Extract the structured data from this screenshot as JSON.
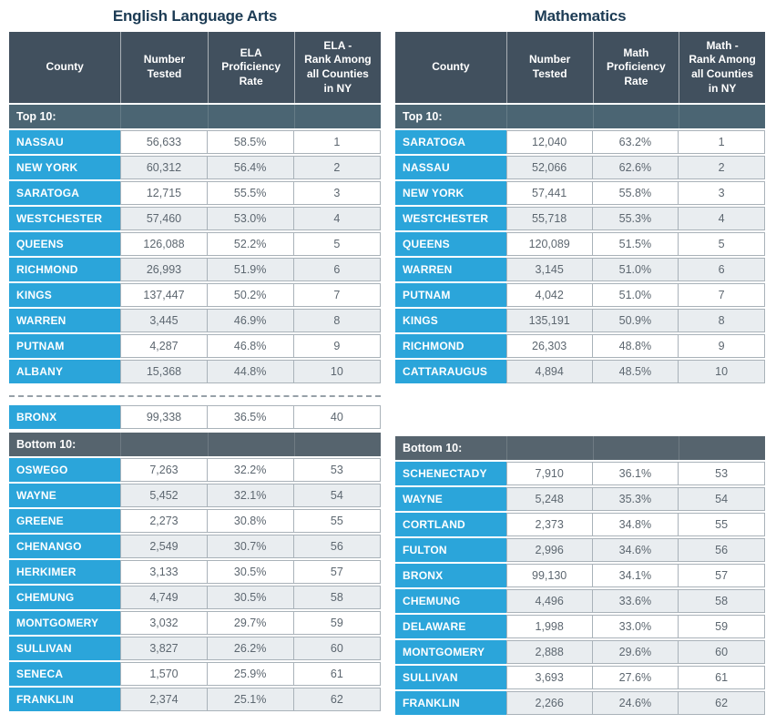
{
  "colors": {
    "accent_blue": "#2ba5da",
    "header_slate": "#41505e",
    "top_band": "#4b6573",
    "bottom_band": "#56646e",
    "row_alt": "#e9edf0",
    "text_dark": "#5d6770",
    "title_navy": "#1c3b54",
    "border_gray": "#a9b2b9",
    "dashed_gray": "#97a0a8"
  },
  "chart_data": [
    {
      "type": "table",
      "id": "ela",
      "title": "English Language Arts",
      "columns": [
        "County",
        "Number\nTested",
        "ELA\nProficiency\nRate",
        "ELA -\nRank Among\nall Counties\nin NY"
      ],
      "sections": [
        {
          "label": "Top 10:",
          "rows": [
            [
              "NASSAU",
              "56,633",
              "58.5%",
              "1"
            ],
            [
              "NEW YORK",
              "60,312",
              "56.4%",
              "2"
            ],
            [
              "SARATOGA",
              "12,715",
              "55.5%",
              "3"
            ],
            [
              "WESTCHESTER",
              "57,460",
              "53.0%",
              "4"
            ],
            [
              "QUEENS",
              "126,088",
              "52.2%",
              "5"
            ],
            [
              "RICHMOND",
              "26,993",
              "51.9%",
              "6"
            ],
            [
              "KINGS",
              "137,447",
              "50.2%",
              "7"
            ],
            [
              "WARREN",
              "3,445",
              "46.9%",
              "8"
            ],
            [
              "PUTNAM",
              "4,287",
              "46.8%",
              "9"
            ],
            [
              "ALBANY",
              "15,368",
              "44.8%",
              "10"
            ]
          ]
        },
        {
          "label": null,
          "separator": true,
          "rows": [
            [
              "BRONX",
              "99,338",
              "36.5%",
              "40"
            ]
          ]
        },
        {
          "label": "Bottom 10:",
          "rows": [
            [
              "OSWEGO",
              "7,263",
              "32.2%",
              "53"
            ],
            [
              "WAYNE",
              "5,452",
              "32.1%",
              "54"
            ],
            [
              "GREENE",
              "2,273",
              "30.8%",
              "55"
            ],
            [
              "CHENANGO",
              "2,549",
              "30.7%",
              "56"
            ],
            [
              "HERKIMER",
              "3,133",
              "30.5%",
              "57"
            ],
            [
              "CHEMUNG",
              "4,749",
              "30.5%",
              "58"
            ],
            [
              "MONTGOMERY",
              "3,032",
              "29.7%",
              "59"
            ],
            [
              "SULLIVAN",
              "3,827",
              "26.2%",
              "60"
            ],
            [
              "SENECA",
              "1,570",
              "25.9%",
              "61"
            ],
            [
              "FRANKLIN",
              "2,374",
              "25.1%",
              "62"
            ]
          ]
        }
      ]
    },
    {
      "type": "table",
      "id": "math",
      "title": "Mathematics",
      "columns": [
        "County",
        "Number\nTested",
        "Math\nProficiency\nRate",
        "Math -\nRank Among\nall Counties\nin NY"
      ],
      "sections": [
        {
          "label": "Top 10:",
          "rows": [
            [
              "SARATOGA",
              "12,040",
              "63.2%",
              "1"
            ],
            [
              "NASSAU",
              "52,066",
              "62.6%",
              "2"
            ],
            [
              "NEW YORK",
              "57,441",
              "55.8%",
              "3"
            ],
            [
              "WESTCHESTER",
              "55,718",
              "55.3%",
              "4"
            ],
            [
              "QUEENS",
              "120,089",
              "51.5%",
              "5"
            ],
            [
              "WARREN",
              "3,145",
              "51.0%",
              "6"
            ],
            [
              "PUTNAM",
              "4,042",
              "51.0%",
              "7"
            ],
            [
              "KINGS",
              "135,191",
              "50.9%",
              "8"
            ],
            [
              "RICHMOND",
              "26,303",
              "48.8%",
              "9"
            ],
            [
              "CATTARAUGUS",
              "4,894",
              "48.5%",
              "10"
            ]
          ]
        },
        {
          "label": "Bottom 10:",
          "rows": [
            [
              "SCHENECTADY",
              "7,910",
              "36.1%",
              "53"
            ],
            [
              "WAYNE",
              "5,248",
              "35.3%",
              "54"
            ],
            [
              "CORTLAND",
              "2,373",
              "34.8%",
              "55"
            ],
            [
              "FULTON",
              "2,996",
              "34.6%",
              "56"
            ],
            [
              "BRONX",
              "99,130",
              "34.1%",
              "57"
            ],
            [
              "CHEMUNG",
              "4,496",
              "33.6%",
              "58"
            ],
            [
              "DELAWARE",
              "1,998",
              "33.0%",
              "59"
            ],
            [
              "MONTGOMERY",
              "2,888",
              "29.6%",
              "60"
            ],
            [
              "SULLIVAN",
              "3,693",
              "27.6%",
              "61"
            ],
            [
              "FRANKLIN",
              "2,266",
              "24.6%",
              "62"
            ]
          ]
        }
      ]
    }
  ]
}
